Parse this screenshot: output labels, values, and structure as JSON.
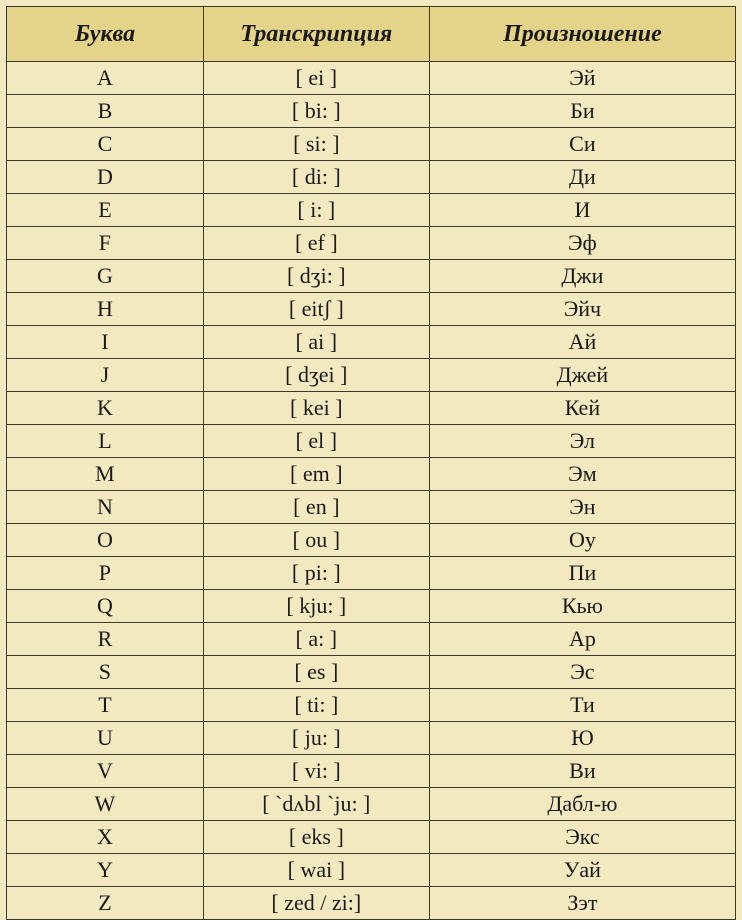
{
  "table": {
    "header_bg": "#e4d48a",
    "row_bg": "#f3e9c0",
    "border_color": "#3a3a2a",
    "header_font_style": "italic bold",
    "header_fontsize": 24,
    "body_fontsize": 22,
    "col_widths_pct": [
      27,
      31,
      42
    ],
    "columns": [
      "Буква",
      "Транскрипция",
      "Произношение"
    ],
    "rows": [
      [
        "A",
        "[ ei ]",
        "Эй"
      ],
      [
        "B",
        "[ bi: ]",
        "Би"
      ],
      [
        "C",
        "[ si: ]",
        "Си"
      ],
      [
        "D",
        "[ di: ]",
        "Ди"
      ],
      [
        "E",
        "[ i: ]",
        "И"
      ],
      [
        "F",
        "[ ef ]",
        "Эф"
      ],
      [
        "G",
        "[ dʒi: ]",
        "Джи"
      ],
      [
        "H",
        "[ eitʃ ]",
        "Эйч"
      ],
      [
        "I",
        "[ ai ]",
        "Ай"
      ],
      [
        "J",
        "[ dʒei ]",
        "Джей"
      ],
      [
        "K",
        "[ kei ]",
        "Кей"
      ],
      [
        "L",
        "[ el ]",
        "Эл"
      ],
      [
        "M",
        "[ em ]",
        "Эм"
      ],
      [
        "N",
        "[ en ]",
        "Эн"
      ],
      [
        "O",
        "[ ou ]",
        "Оу"
      ],
      [
        "P",
        "[ pi: ]",
        "Пи"
      ],
      [
        "Q",
        "[ kju: ]",
        "Кью"
      ],
      [
        "R",
        "[ a: ]",
        "Ар"
      ],
      [
        "S",
        "[ es ]",
        "Эс"
      ],
      [
        "T",
        "[ ti: ]",
        "Ти"
      ],
      [
        "U",
        "[ ju: ]",
        "Ю"
      ],
      [
        "V",
        "[ vi: ]",
        "Ви"
      ],
      [
        "W",
        "[ `dʌbl `ju: ]",
        "Дабл-ю"
      ],
      [
        "X",
        "[ eks ]",
        "Экс"
      ],
      [
        "Y",
        "[ wai ]",
        "Уай"
      ],
      [
        "Z",
        "[ zed / zi:]",
        "Зэт"
      ]
    ]
  }
}
